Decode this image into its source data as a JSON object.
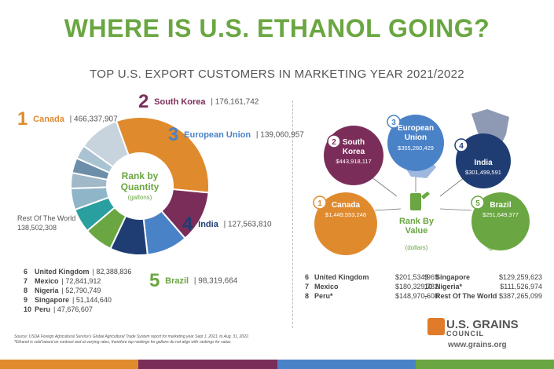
{
  "header": {
    "title": "WHERE IS U.S. ETHANOL GOING?",
    "subtitle": "TOP U.S. EXPORT CUSTOMERS IN MARKETING YEAR 2021/2022"
  },
  "colors": {
    "title_green": "#6aa641",
    "canada": "#e08a2e",
    "south_korea": "#7b2d5a",
    "european_union": "#4a82c8",
    "india": "#1f3d73",
    "brazil": "#6aa641",
    "rest_of_world": "#b7c6d4",
    "logo_orange": "#e07b2a"
  },
  "chart_data": [
    {
      "type": "pie",
      "title": "Rank by Quantity",
      "unit_label": "(gallons)",
      "categories": [
        "Canada",
        "South Korea",
        "European Union",
        "India",
        "Brazil",
        "United Kingdom",
        "Mexico",
        "Nigeria",
        "Singapore",
        "Peru",
        "Rest Of The World"
      ],
      "values": [
        466337907,
        176161742,
        139060957,
        127563810,
        98319664,
        82388836,
        72841912,
        52790749,
        51144640,
        47676607,
        138502308
      ],
      "labels": [
        "466,337,907",
        "176,161,742",
        "139,060,957",
        "127,563,810",
        "98,319,664",
        "82,388,836",
        "72,841,912",
        "52,790,749",
        "51,144,640",
        "47,676,607",
        "138,502,308"
      ],
      "colors": [
        "#e08a2e",
        "#7b2d5a",
        "#4a82c8",
        "#1f3d73",
        "#6aa641",
        "#2a9fa0",
        "#8fb5c9",
        "#a0b8c8",
        "#6c8ea8",
        "#aac3d3",
        "#c7d3dd"
      ]
    },
    {
      "type": "table",
      "title": "Rank By Value",
      "unit_label": "(dollars)",
      "categories": [
        "Canada",
        "South Korea",
        "European Union",
        "India",
        "Brazil",
        "United Kingdom",
        "Mexico",
        "Peru*",
        "Singapore",
        "Nigeria*",
        "Rest Of The World"
      ],
      "values": [
        1449553248,
        443918117,
        355260429,
        301499591,
        251649377,
        201534969,
        180329782,
        148970608,
        129259623,
        111526974,
        387265099
      ],
      "labels": [
        "$1,449,553,248",
        "$443,918,117",
        "$355,260,429",
        "$301,499,591",
        "$251,649,377",
        "$201,534,969",
        "$180,329,782",
        "$148,970,608",
        "$129,259,623",
        "$111,526,974",
        "$387,265,099"
      ]
    }
  ],
  "quantity": {
    "center_line1": "Rank by",
    "center_line2": "Quantity",
    "center_line3": "(gallons)",
    "top5": [
      {
        "rank": "1",
        "name": "Canada",
        "value": "| 466,337,907"
      },
      {
        "rank": "2",
        "name": "South Korea",
        "value": "| 176,161,742"
      },
      {
        "rank": "3",
        "name": "European Union",
        "value": "| 139,060,957"
      },
      {
        "rank": "4",
        "name": "India",
        "value": "| 127,563,810"
      },
      {
        "rank": "5",
        "name": "Brazil",
        "value": "| 98,319,664"
      }
    ],
    "rest_label": "Rest Of The World",
    "rest_value": "138,502,308",
    "lower": [
      {
        "rank": "6",
        "name": "United Kingdom",
        "value": "| 82,388,836"
      },
      {
        "rank": "7",
        "name": "Mexico",
        "value": "| 72,841,912"
      },
      {
        "rank": "8",
        "name": "Nigeria",
        "value": "| 52,790,749"
      },
      {
        "rank": "9",
        "name": "Singapore",
        "value": "| 51,144,640"
      },
      {
        "rank": "10",
        "name": "Peru",
        "value": "| 47,676,607"
      }
    ]
  },
  "value": {
    "center_line1": "Rank By",
    "center_line2": "Value",
    "center_line3": "(dollars)",
    "bubbles": [
      {
        "rank": "1",
        "name1": "Canada",
        "name2": "",
        "value": "$1,449,553,248"
      },
      {
        "rank": "2",
        "name1": "South",
        "name2": "Korea",
        "value": "$443,918,117"
      },
      {
        "rank": "3",
        "name1": "European",
        "name2": "Union",
        "value": "$355,260,429"
      },
      {
        "rank": "4",
        "name1": "India",
        "name2": "",
        "value": "$301,499,591"
      },
      {
        "rank": "5",
        "name1": "Brazil",
        "name2": "",
        "value": "$251,649,377"
      }
    ],
    "table_left": [
      {
        "rank": "6",
        "name": "United Kingdom",
        "value": "$201,534,969"
      },
      {
        "rank": "7",
        "name": "Mexico",
        "value": "$180,329,782"
      },
      {
        "rank": "8",
        "name": "Peru*",
        "value": "$148,970,608"
      }
    ],
    "table_right": [
      {
        "rank": "9",
        "name": "Singapore",
        "value": "$129,259,623"
      },
      {
        "rank": "10",
        "name": "Nigeria*",
        "value": "$111,526,974"
      },
      {
        "rank": "–",
        "name": "Rest Of The World",
        "value": "$387,265,099"
      }
    ]
  },
  "footnote": {
    "line1": "Source: USDA Foreign Agricultural Service's Global Agricultural Trade System report for marketing year Sept 1, 2021, to Aug. 31, 2022.",
    "line2": "*Ethanol is sold based on contract and at varying rates, therefore top rankings for gallons do not align with rankings for value."
  },
  "logo": {
    "name": "U.S. GRAINS",
    "sub": "COUNCIL",
    "url": "www.grains.org"
  }
}
